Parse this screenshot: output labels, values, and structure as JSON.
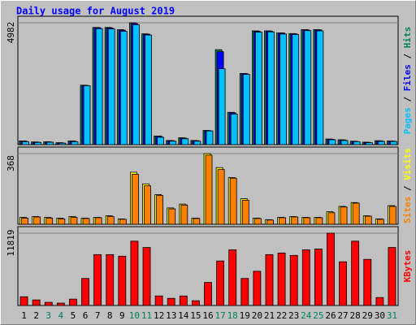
{
  "title": "Daily usage for August 2019",
  "chart_data": [
    {
      "type": "bar",
      "ylim": [
        0,
        4982
      ],
      "yticks": [
        4982
      ],
      "series": [
        {
          "name": "Hits",
          "color": "#00805c",
          "values": [
            150,
            110,
            120,
            80,
            150,
            2430,
            4790,
            4790,
            4700,
            4982,
            4530,
            350,
            170,
            280,
            170,
            580,
            3880,
            1320,
            2910,
            4650,
            4650,
            4570,
            4540,
            4700,
            4700,
            230,
            200,
            140,
            100,
            160,
            150
          ]
        },
        {
          "name": "Files",
          "color": "#0000ff",
          "values": [
            140,
            100,
            110,
            70,
            140,
            2420,
            4780,
            4770,
            4680,
            4950,
            4510,
            340,
            160,
            260,
            160,
            570,
            3800,
            1300,
            2900,
            4630,
            4640,
            4560,
            4530,
            4690,
            4690,
            220,
            190,
            130,
            90,
            150,
            140
          ]
        },
        {
          "name": "Pages",
          "color": "#00c0ff",
          "values": [
            120,
            90,
            100,
            60,
            120,
            2410,
            4740,
            4730,
            4630,
            4900,
            4480,
            300,
            140,
            240,
            140,
            560,
            3100,
            1250,
            2870,
            4600,
            4610,
            4520,
            4500,
            4660,
            4650,
            200,
            170,
            120,
            80,
            130,
            130
          ]
        }
      ]
    },
    {
      "type": "bar",
      "ylim": [
        0,
        368
      ],
      "yticks": [
        368
      ],
      "series": [
        {
          "name": "Visits",
          "color": "#ffff00",
          "values": [
            36,
            40,
            36,
            32,
            40,
            32,
            36,
            44,
            28,
            271,
            210,
            154,
            85,
            105,
            32,
            368,
            295,
            243,
            133,
            32,
            24,
            36,
            40,
            36,
            36,
            65,
            93,
            113,
            44,
            28,
            97
          ]
        },
        {
          "name": "Sites",
          "color": "#ff8000",
          "values": [
            32,
            38,
            32,
            28,
            36,
            30,
            34,
            40,
            26,
            260,
            200,
            150,
            80,
            100,
            30,
            360,
            285,
            240,
            125,
            30,
            22,
            34,
            38,
            34,
            34,
            60,
            90,
            110,
            42,
            26,
            93
          ]
        }
      ]
    },
    {
      "type": "bar",
      "ylim": [
        0,
        11819
      ],
      "yticks": [
        11819
      ],
      "categories": [
        "1",
        "2",
        "3",
        "4",
        "5",
        "6",
        "7",
        "8",
        "9",
        "10",
        "11",
        "12",
        "13",
        "14",
        "15",
        "16",
        "17",
        "18",
        "19",
        "20",
        "21",
        "22",
        "23",
        "24",
        "25",
        "26",
        "27",
        "28",
        "29",
        "30",
        "31"
      ],
      "category_colors": [
        "#000000",
        "#000000",
        "#00805c",
        "#00805c",
        "#000000",
        "#000000",
        "#000000",
        "#000000",
        "#000000",
        "#00805c",
        "#00805c",
        "#000000",
        "#000000",
        "#000000",
        "#000000",
        "#000000",
        "#00805c",
        "#00805c",
        "#000000",
        "#000000",
        "#000000",
        "#000000",
        "#000000",
        "#00805c",
        "#00805c",
        "#000000",
        "#000000",
        "#000000",
        "#000000",
        "#000000",
        "#00805c"
      ],
      "series": [
        {
          "name": "KBytes",
          "color": "#ff0000",
          "values": [
            1430,
            910,
            520,
            390,
            1040,
            4420,
            8320,
            8320,
            8060,
            10520,
            9480,
            1560,
            1170,
            1560,
            780,
            3770,
            7280,
            9100,
            4420,
            5590,
            8320,
            8580,
            8190,
            9100,
            9230,
            11819,
            7150,
            10520,
            7540,
            1300,
            9480
          ]
        }
      ]
    }
  ]
}
